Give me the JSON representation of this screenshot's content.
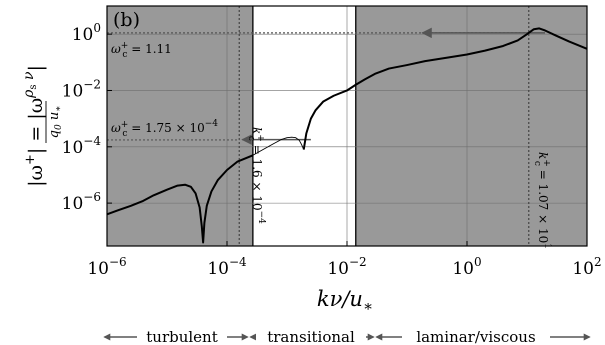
{
  "chart_data": {
    "type": "line",
    "panel_label": "(b)",
    "xscale": "log",
    "yscale": "log",
    "xlim": [
      1e-06,
      100
    ],
    "ylim": [
      3e-08,
      10
    ],
    "xlabel": "kν/u*",
    "ylabel": "|ω⁺| = |ω (ρs/q0) (ν/u*)|",
    "x_ticks": [
      {
        "value": 1e-06,
        "base": "10",
        "exp": "−6"
      },
      {
        "value": 0.0001,
        "base": "10",
        "exp": "−4"
      },
      {
        "value": 0.01,
        "base": "10",
        "exp": "−2"
      },
      {
        "value": 1,
        "base": "10",
        "exp": "0"
      },
      {
        "value": 100,
        "base": "10",
        "exp": "2"
      }
    ],
    "y_ticks": [
      {
        "value": 1,
        "base": "10",
        "exp": "0"
      },
      {
        "value": 0.01,
        "base": "10",
        "exp": "−2"
      },
      {
        "value": 0.0001,
        "base": "10",
        "exp": "−4"
      },
      {
        "value": 1e-06,
        "base": "10",
        "exp": "−6"
      }
    ],
    "shaded_regions": [
      {
        "x": [
          1e-06,
          0.00027
        ],
        "color": "#999999"
      },
      {
        "x": [
          0.014,
          100
        ],
        "color": "#999999"
      }
    ],
    "critical_k": [
      {
        "value": 0.00016,
        "label_main": "k",
        "label_sub": "c",
        "label_sup": "+",
        "label_rest": " = 1.6 × 10",
        "label_exp": "−4"
      },
      {
        "value": 10.7,
        "label_main": "k",
        "label_sub": "c",
        "label_sup": "+",
        "label_rest": " = 1.07 × 10",
        "label_exp": "1"
      }
    ],
    "critical_omega": [
      {
        "value": 1.11,
        "label_main": "ω",
        "label_sub": "c",
        "label_sup": "+",
        "label_rest": " = 1.11",
        "label_exp": ""
      },
      {
        "value": 0.000175,
        "label_main": "ω",
        "label_sub": "c",
        "label_sup": "+",
        "label_rest": " = 1.75 × 10",
        "label_exp": "−4"
      }
    ],
    "series": [
      {
        "style": "thick",
        "x": [
          1e-06,
          1.5e-06,
          2.5e-06,
          4e-06,
          6e-06,
          1e-05,
          1.5e-05,
          2e-05,
          2.5e-05,
          3e-05,
          3.5e-05,
          3.8e-05,
          4e-05,
          4.2e-05,
          4.6e-05,
          5.5e-05,
          7e-05,
          0.0001,
          0.00015,
          0.00027
        ],
        "y": [
          4e-07,
          5.5e-07,
          8e-07,
          1.2e-06,
          1.9e-06,
          3e-06,
          4.2e-06,
          4.5e-06,
          3.8e-06,
          2.2e-06,
          7e-07,
          1.5e-07,
          4e-08,
          2e-07,
          8e-07,
          2.6e-06,
          6.5e-06,
          1.5e-05,
          3e-05,
          5e-05
        ]
      },
      {
        "style": "thin",
        "x": [
          0.00027,
          0.0004,
          0.0006,
          0.0008,
          0.001,
          0.0012,
          0.0014,
          0.0016,
          0.00175,
          0.0019
        ],
        "y": [
          5e-05,
          8e-05,
          0.00013,
          0.00018,
          0.00021,
          0.00022,
          0.00021,
          0.00017,
          0.00012,
          8e-05
        ]
      },
      {
        "style": "thick",
        "x": [
          0.0019,
          0.0021,
          0.0025,
          0.003,
          0.004,
          0.006,
          0.01,
          0.014,
          0.02,
          0.03,
          0.05,
          0.1,
          0.2,
          0.5,
          1,
          2,
          4,
          7,
          10,
          13,
          16,
          20,
          30,
          50,
          100
        ],
        "y": [
          8e-05,
          0.0003,
          0.001,
          0.002,
          0.004,
          0.0065,
          0.01,
          0.016,
          0.025,
          0.04,
          0.06,
          0.08,
          0.11,
          0.15,
          0.19,
          0.26,
          0.38,
          0.6,
          1.0,
          1.5,
          1.6,
          1.35,
          0.9,
          0.55,
          0.3
        ]
      }
    ],
    "arrows": [
      {
        "from_x": 20,
        "to_x": 0.18,
        "y": 1.11
      },
      {
        "from_x": 0.0025,
        "to_x": 0.00018,
        "y": 0.00018
      }
    ],
    "regimes": {
      "turbulent": "turbulent",
      "transitional": "transitional",
      "laminar": "laminar/viscous"
    }
  }
}
